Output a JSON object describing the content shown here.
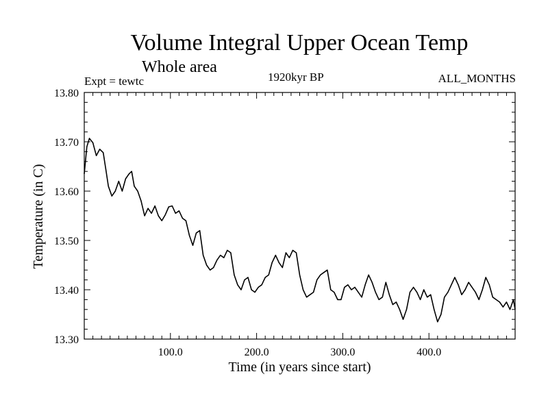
{
  "chart_data": {
    "type": "line",
    "title": "Volume Integral Upper Ocean Temp",
    "subtitle": "Whole area",
    "annotations": {
      "experiment": "Expt = tewtc",
      "period": "1920kyr BP",
      "months": "ALL_MONTHS"
    },
    "xlabel": "Time (in years since start)",
    "ylabel": "Temperature (in C)",
    "xlim": [
      0,
      500
    ],
    "ylim": [
      13.3,
      13.8
    ],
    "xticks": [
      100,
      200,
      300,
      400
    ],
    "xtick_labels": [
      "100.0",
      "200.0",
      "300.0",
      "400.0"
    ],
    "yticks": [
      13.3,
      13.4,
      13.5,
      13.6,
      13.7,
      13.8
    ],
    "ytick_labels": [
      "13.30",
      "13.40",
      "13.50",
      "13.60",
      "13.70",
      "13.80"
    ],
    "grid": false,
    "series": [
      {
        "name": "Volume integral upper ocean temperature",
        "color": "#000000",
        "x": [
          0,
          3,
          6,
          10,
          14,
          18,
          22,
          25,
          28,
          32,
          36,
          40,
          44,
          48,
          52,
          55,
          58,
          62,
          66,
          70,
          74,
          78,
          82,
          86,
          90,
          94,
          98,
          102,
          106,
          110,
          114,
          118,
          122,
          126,
          130,
          134,
          138,
          142,
          146,
          150,
          154,
          158,
          162,
          166,
          170,
          174,
          178,
          182,
          186,
          190,
          194,
          198,
          202,
          206,
          210,
          214,
          218,
          222,
          226,
          230,
          234,
          238,
          242,
          246,
          250,
          254,
          258,
          262,
          266,
          270,
          274,
          278,
          282,
          286,
          290,
          294,
          298,
          302,
          306,
          310,
          314,
          318,
          322,
          326,
          330,
          334,
          338,
          342,
          346,
          350,
          354,
          358,
          362,
          366,
          370,
          374,
          378,
          382,
          386,
          390,
          394,
          398,
          402,
          406,
          410,
          414,
          418,
          422,
          426,
          430,
          434,
          438,
          442,
          446,
          450,
          454,
          458,
          462,
          466,
          470,
          474,
          478,
          482,
          486,
          490,
          494,
          498,
          500
        ],
        "values": [
          13.635,
          13.69,
          13.707,
          13.698,
          13.672,
          13.685,
          13.678,
          13.645,
          13.61,
          13.59,
          13.6,
          13.62,
          13.6,
          13.625,
          13.635,
          13.64,
          13.61,
          13.6,
          13.58,
          13.55,
          13.565,
          13.555,
          13.57,
          13.55,
          13.54,
          13.552,
          13.568,
          13.57,
          13.555,
          13.56,
          13.545,
          13.54,
          13.51,
          13.49,
          13.515,
          13.52,
          13.47,
          13.45,
          13.44,
          13.445,
          13.46,
          13.47,
          13.465,
          13.48,
          13.475,
          13.43,
          13.41,
          13.4,
          13.42,
          13.425,
          13.4,
          13.395,
          13.405,
          13.41,
          13.425,
          13.43,
          13.455,
          13.47,
          13.455,
          13.445,
          13.475,
          13.465,
          13.48,
          13.475,
          13.43,
          13.4,
          13.385,
          13.39,
          13.395,
          13.42,
          13.43,
          13.435,
          13.44,
          13.4,
          13.395,
          13.38,
          13.38,
          13.405,
          13.41,
          13.4,
          13.405,
          13.395,
          13.385,
          13.41,
          13.43,
          13.415,
          13.395,
          13.38,
          13.385,
          13.415,
          13.39,
          13.37,
          13.375,
          13.36,
          13.34,
          13.36,
          13.395,
          13.405,
          13.395,
          13.38,
          13.4,
          13.385,
          13.39,
          13.36,
          13.335,
          13.35,
          13.385,
          13.395,
          13.41,
          13.425,
          13.41,
          13.39,
          13.4,
          13.415,
          13.405,
          13.395,
          13.38,
          13.4,
          13.425,
          13.41,
          13.385,
          13.38,
          13.375,
          13.365,
          13.375,
          13.36,
          13.38,
          13.36
        ]
      }
    ]
  }
}
